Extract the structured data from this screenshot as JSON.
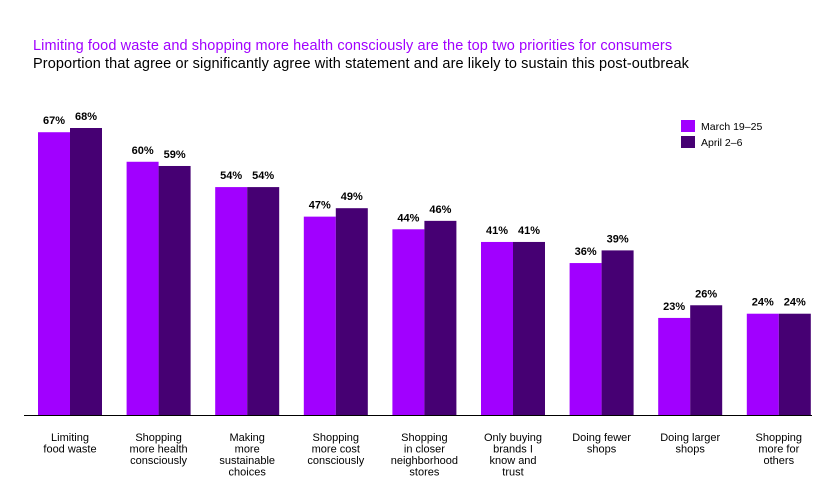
{
  "title": "Limiting food waste and shopping more health consciously are the top two priorities for consumers",
  "subtitle": "Proportion that agree or significantly agree with statement and are likely to sustain this post-outbreak",
  "colors": {
    "series1": "#a100ff",
    "series2": "#460073",
    "axis": "#000000"
  },
  "chart_data": {
    "type": "bar",
    "title": "Limiting food waste and shopping more health consciously are the top two priorities for consumers",
    "subtitle": "Proportion that agree or significantly agree with statement and are likely to sustain this post-outbreak",
    "categories": [
      [
        "Limiting",
        "food waste"
      ],
      [
        "Shopping",
        "more health",
        "consciously"
      ],
      [
        "Making",
        "more",
        "sustainable",
        "choices"
      ],
      [
        "Shopping",
        "more cost",
        "consciously"
      ],
      [
        "Shopping",
        "in closer",
        "neighborhood",
        "stores"
      ],
      [
        "Only buying",
        "brands I",
        "know and",
        "trust"
      ],
      [
        "Doing fewer",
        "shops"
      ],
      [
        "Doing larger",
        "shops"
      ],
      [
        "Shopping",
        "more for",
        "others"
      ]
    ],
    "series": [
      {
        "name": "March 19–25",
        "values": [
          67,
          60,
          54,
          47,
          44,
          41,
          36,
          23,
          24
        ],
        "labels": [
          "67%",
          "60%",
          "54%",
          "47%",
          "44%",
          "41%",
          "36%",
          "23%",
          "24%"
        ]
      },
      {
        "name": "April 2–6",
        "values": [
          68,
          59,
          54,
          49,
          46,
          41,
          39,
          26,
          24
        ],
        "labels": [
          "68%",
          "59%",
          "54%",
          "49%",
          "46%",
          "41%",
          "39%",
          "26%",
          "24%"
        ]
      }
    ],
    "xlabel": "",
    "ylabel": "",
    "ylim": [
      0,
      68
    ],
    "legend": "top-right",
    "grid": false
  }
}
